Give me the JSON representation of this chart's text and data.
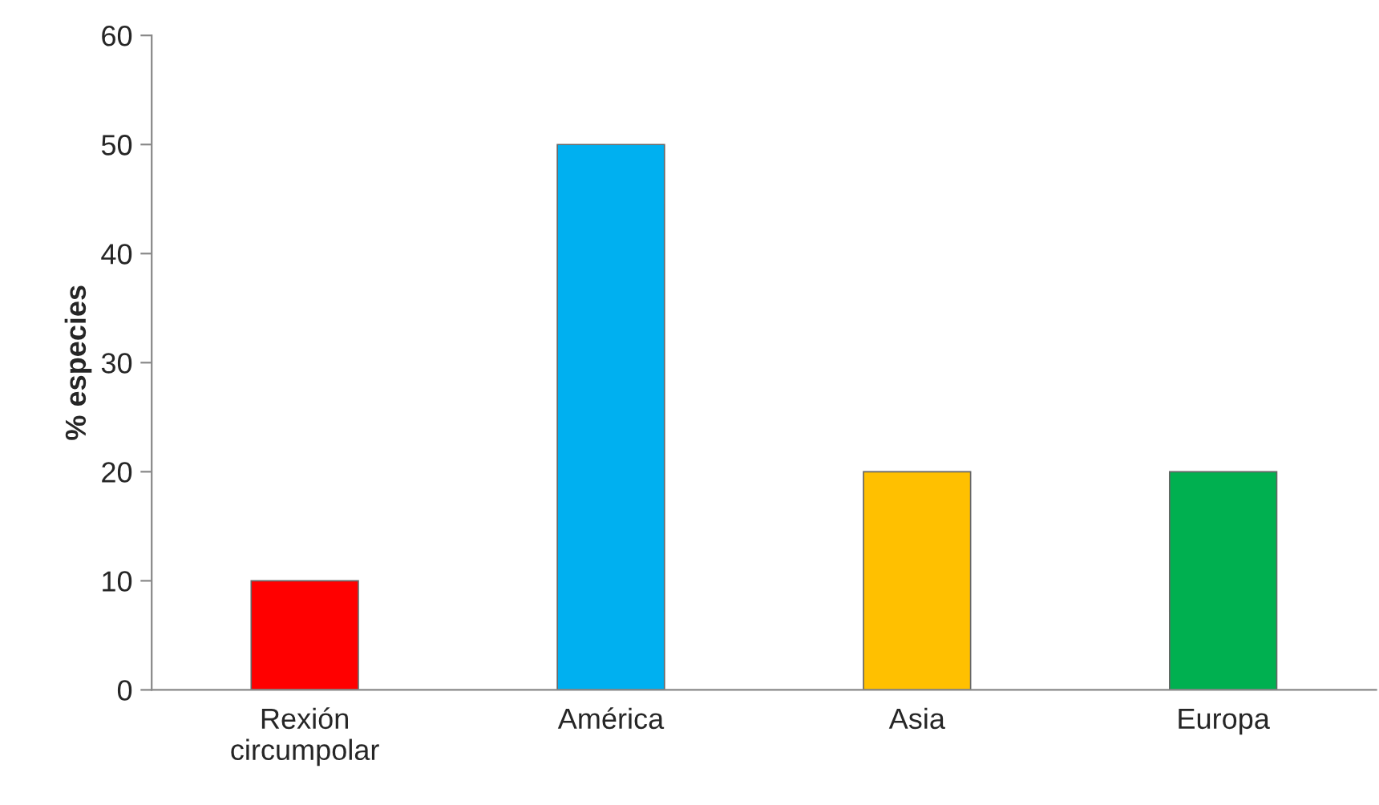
{
  "chart_data": {
    "type": "bar",
    "ylabel": "% especies",
    "categories": [
      "Rexión\ncircumpolar",
      "América",
      "Asia",
      "Europa"
    ],
    "values": [
      10,
      50,
      20,
      20
    ],
    "colors": [
      "#ff0000",
      "#00b0f0",
      "#ffc000",
      "#00b050"
    ],
    "ylim": [
      0,
      60
    ],
    "yticks": [
      0,
      10,
      20,
      30,
      40,
      50,
      60
    ],
    "grid": false,
    "legend": false
  }
}
